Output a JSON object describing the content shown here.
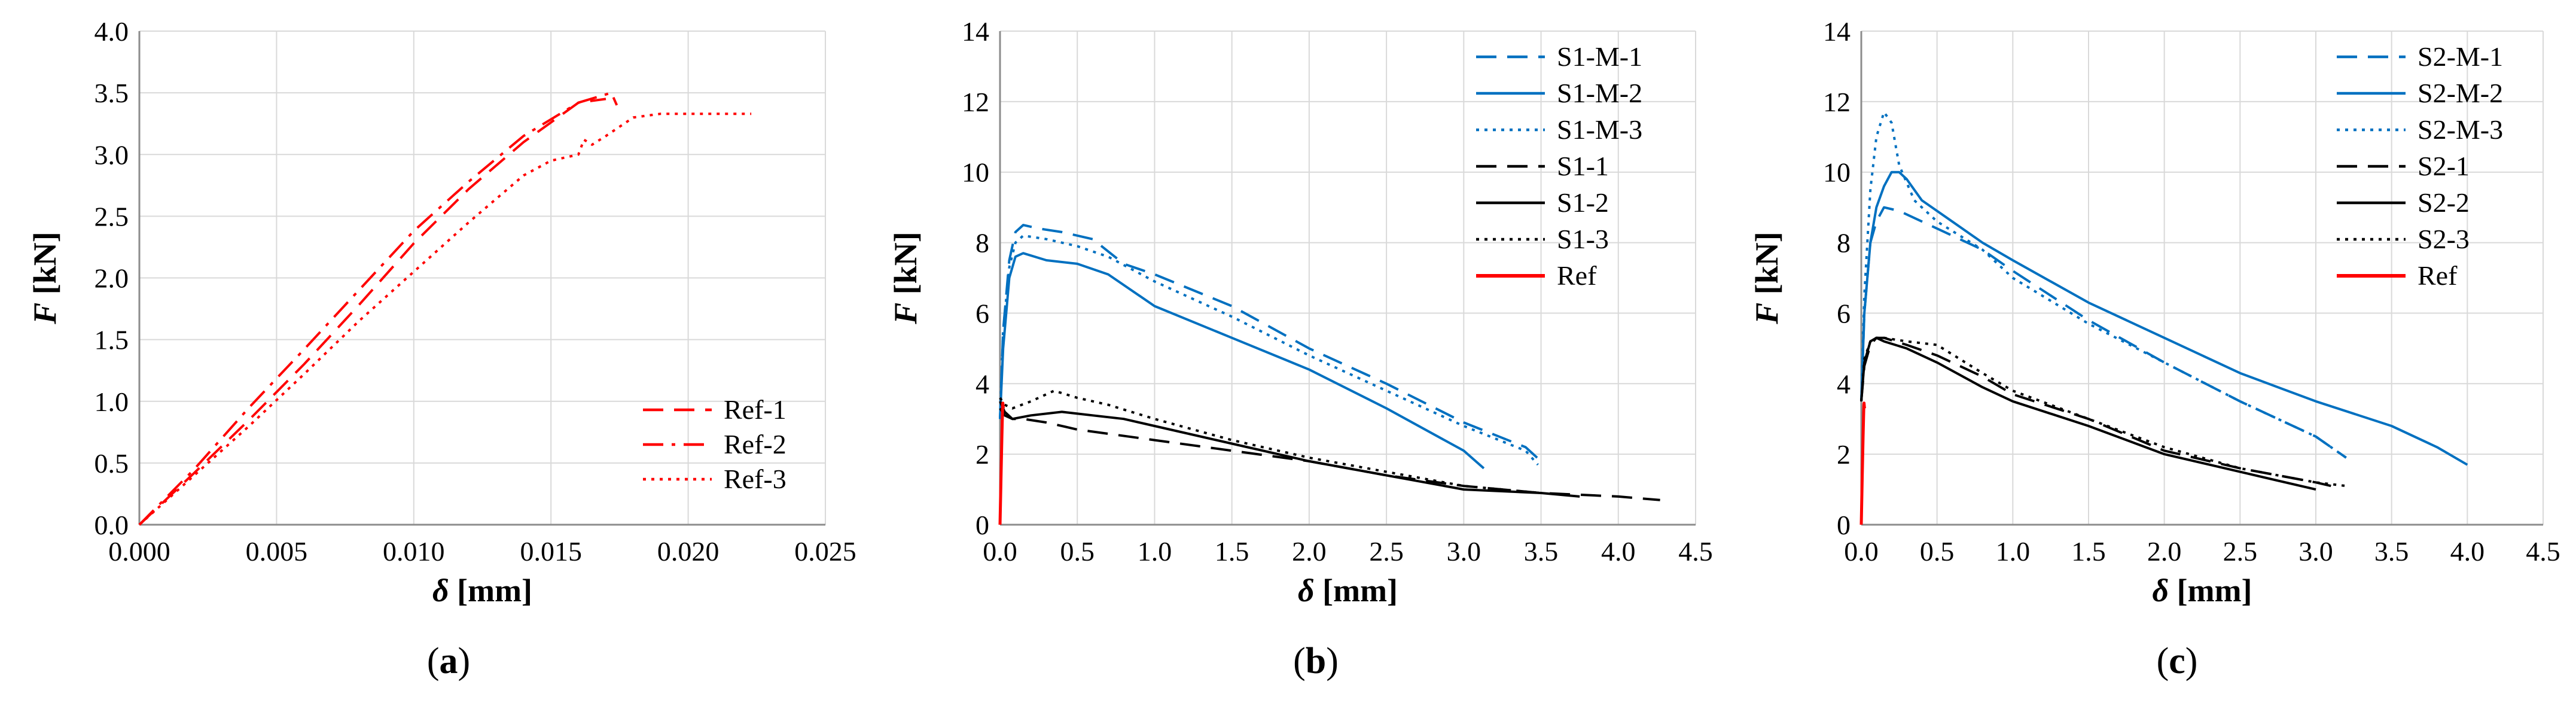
{
  "chart_data": [
    {
      "type": "line",
      "panel_label": "a",
      "caption": {
        "open": "(",
        "letter": "a",
        "close": ")"
      },
      "xlabel": {
        "symbol": "δ",
        "unit": " [mm]"
      },
      "ylabel": {
        "symbol": "F",
        "unit": " [kN]"
      },
      "xlim": [
        0,
        0.025
      ],
      "ylim": [
        0,
        4
      ],
      "xticks": [
        "0.000",
        "0.005",
        "0.010",
        "0.015",
        "0.020",
        "0.025"
      ],
      "yticks": [
        "0.0",
        "0.5",
        "1.0",
        "1.5",
        "2.0",
        "2.5",
        "3.0",
        "3.5",
        "4.0"
      ],
      "grid": true,
      "legend_position": "bottom-right",
      "series": [
        {
          "name": "Ref-1",
          "color": "#ff0000",
          "dash": "long-dash",
          "x": [
            0,
            0.002,
            0.004,
            0.006,
            0.008,
            0.01,
            0.012,
            0.014,
            0.016,
            0.017
          ],
          "y": [
            0,
            0.42,
            0.85,
            1.3,
            1.78,
            2.28,
            2.72,
            3.1,
            3.42,
            3.45
          ]
        },
        {
          "name": "Ref-2",
          "color": "#ff0000",
          "dash": "dash-dot",
          "x": [
            0,
            0.002,
            0.004,
            0.006,
            0.008,
            0.01,
            0.012,
            0.014,
            0.016,
            0.0172,
            0.0174
          ],
          "y": [
            0,
            0.45,
            0.95,
            1.42,
            1.9,
            2.38,
            2.78,
            3.15,
            3.42,
            3.5,
            3.4
          ]
        },
        {
          "name": "Ref-3",
          "color": "#ff0000",
          "dash": "dotted",
          "x": [
            0,
            0.002,
            0.004,
            0.006,
            0.008,
            0.01,
            0.012,
            0.014,
            0.015,
            0.016,
            0.0162,
            0.0165,
            0.017,
            0.018,
            0.019,
            0.02,
            0.021,
            0.0223
          ],
          "y": [
            0,
            0.4,
            0.8,
            1.22,
            1.65,
            2.05,
            2.45,
            2.83,
            2.95,
            3.0,
            3.12,
            3.08,
            3.15,
            3.3,
            3.33,
            3.33,
            3.33,
            3.33
          ]
        }
      ]
    },
    {
      "type": "line",
      "panel_label": "b",
      "caption": {
        "open": "(",
        "letter": "b",
        "close": ")"
      },
      "xlabel": {
        "symbol": "δ",
        "unit": " [mm]"
      },
      "ylabel": {
        "symbol": "F",
        "unit": " [kN]"
      },
      "xlim": [
        0,
        4.5
      ],
      "ylim": [
        0,
        14
      ],
      "xticks": [
        "0.0",
        "0.5",
        "1.0",
        "1.5",
        "2.0",
        "2.5",
        "3.0",
        "3.5",
        "4.0",
        "4.5"
      ],
      "yticks": [
        "0",
        "2",
        "4",
        "6",
        "8",
        "10",
        "12",
        "14"
      ],
      "grid": true,
      "legend_position": "top-right",
      "series": [
        {
          "name": "S1-M-1",
          "color": "#0070c0",
          "dash": "long-dash",
          "x": [
            0,
            0.02,
            0.06,
            0.1,
            0.15,
            0.25,
            0.4,
            0.6,
            0.8,
            1.0,
            1.5,
            2.0,
            2.5,
            3.0,
            3.4,
            3.5
          ],
          "y": [
            3.0,
            5.5,
            7.5,
            8.3,
            8.5,
            8.4,
            8.3,
            8.1,
            7.4,
            7.1,
            6.2,
            5.0,
            4.0,
            2.9,
            2.2,
            1.8
          ]
        },
        {
          "name": "S1-M-2",
          "color": "#0070c0",
          "dash": "solid",
          "x": [
            0,
            0.02,
            0.06,
            0.1,
            0.15,
            0.3,
            0.5,
            0.7,
            1.0,
            1.5,
            2.0,
            2.5,
            3.0,
            3.13
          ],
          "y": [
            3.0,
            5.0,
            7.0,
            7.6,
            7.7,
            7.5,
            7.4,
            7.1,
            6.2,
            5.3,
            4.4,
            3.3,
            2.1,
            1.6
          ]
        },
        {
          "name": "S1-M-3",
          "color": "#0070c0",
          "dash": "dotted",
          "x": [
            0,
            0.02,
            0.06,
            0.1,
            0.15,
            0.3,
            0.5,
            0.7,
            1.0,
            1.5,
            2.0,
            2.5,
            3.0,
            3.4,
            3.48
          ],
          "y": [
            3.0,
            5.5,
            7.3,
            8.0,
            8.2,
            8.1,
            7.9,
            7.6,
            6.9,
            5.9,
            4.8,
            3.8,
            2.8,
            2.1,
            1.7
          ]
        },
        {
          "name": "S1-1",
          "color": "#000000",
          "dash": "long-dash",
          "x": [
            0,
            0.03,
            0.08,
            0.15,
            0.3,
            0.5,
            1.0,
            1.5,
            2.0,
            2.5,
            3.0,
            3.5,
            4.0,
            4.27
          ],
          "y": [
            3.3,
            3.1,
            3.0,
            3.0,
            2.9,
            2.7,
            2.4,
            2.1,
            1.8,
            1.4,
            1.1,
            0.9,
            0.8,
            0.7
          ]
        },
        {
          "name": "S1-2",
          "color": "#000000",
          "dash": "solid",
          "x": [
            0,
            0.03,
            0.08,
            0.2,
            0.4,
            0.6,
            0.8,
            1.0,
            1.5,
            2.0,
            2.5,
            3.0,
            3.5,
            3.75
          ],
          "y": [
            3.5,
            3.2,
            3.0,
            3.1,
            3.2,
            3.1,
            3.0,
            2.8,
            2.3,
            1.8,
            1.4,
            1.0,
            0.9,
            0.8
          ]
        },
        {
          "name": "S1-3",
          "color": "#000000",
          "dash": "dotted",
          "x": [
            0,
            0.03,
            0.08,
            0.2,
            0.35,
            0.5,
            0.7,
            1.0,
            1.5,
            2.0,
            2.5,
            3.0,
            3.5
          ],
          "y": [
            3.6,
            3.4,
            3.3,
            3.5,
            3.8,
            3.6,
            3.4,
            3.0,
            2.4,
            1.9,
            1.5,
            1.1,
            0.9
          ]
        },
        {
          "name": "Ref",
          "color": "#ff0000",
          "dash": "solid",
          "x": [
            0,
            0.006,
            0.012,
            0.017,
            0.018,
            0.02,
            0.022
          ],
          "y": [
            0,
            1.3,
            2.5,
            3.4,
            3.45,
            3.35,
            3.3
          ]
        }
      ]
    },
    {
      "type": "line",
      "panel_label": "c",
      "caption": {
        "open": "(",
        "letter": "c",
        "close": ")"
      },
      "xlabel": {
        "symbol": "δ",
        "unit": " [mm]"
      },
      "ylabel": {
        "symbol": "F",
        "unit": " [kN]"
      },
      "xlim": [
        0,
        4.5
      ],
      "ylim": [
        0,
        14
      ],
      "xticks": [
        "0.0",
        "0.5",
        "1.0",
        "1.5",
        "2.0",
        "2.5",
        "3.0",
        "3.5",
        "4.0",
        "4.5"
      ],
      "yticks": [
        "0",
        "2",
        "4",
        "6",
        "8",
        "10",
        "12",
        "14"
      ],
      "grid": true,
      "legend_position": "top-right",
      "series": [
        {
          "name": "S2-M-1",
          "color": "#0070c0",
          "dash": "long-dash",
          "x": [
            0,
            0.02,
            0.06,
            0.1,
            0.15,
            0.25,
            0.4,
            0.6,
            0.8,
            1.0,
            1.5,
            2.0,
            2.5,
            3.0,
            3.2
          ],
          "y": [
            3.5,
            6.0,
            8.0,
            8.6,
            9.0,
            8.9,
            8.6,
            8.2,
            7.8,
            7.2,
            5.8,
            4.6,
            3.5,
            2.5,
            1.9
          ]
        },
        {
          "name": "S2-M-2",
          "color": "#0070c0",
          "dash": "solid",
          "x": [
            0,
            0.02,
            0.06,
            0.1,
            0.15,
            0.2,
            0.25,
            0.3,
            0.4,
            0.6,
            0.8,
            1.0,
            1.5,
            2.0,
            2.5,
            3.0,
            3.5,
            3.8,
            4.0
          ],
          "y": [
            3.5,
            6.0,
            8.0,
            9.0,
            9.6,
            10.0,
            10.0,
            9.8,
            9.2,
            8.6,
            8.0,
            7.5,
            6.3,
            5.3,
            4.3,
            3.5,
            2.8,
            2.2,
            1.7
          ]
        },
        {
          "name": "S2-M-3",
          "color": "#0070c0",
          "dash": "dotted",
          "x": [
            0,
            0.02,
            0.06,
            0.1,
            0.15,
            0.2,
            0.25,
            0.35,
            0.5,
            0.8,
            1.0,
            1.5,
            2.0,
            2.5,
            3.0,
            3.2
          ],
          "y": [
            3.5,
            6.5,
            9.5,
            11.0,
            11.7,
            11.4,
            10.2,
            9.2,
            8.6,
            7.8,
            7.0,
            5.7,
            4.6,
            3.5,
            2.5,
            1.9
          ]
        },
        {
          "name": "S2-1",
          "color": "#000000",
          "dash": "long-dash",
          "x": [
            0,
            0.02,
            0.06,
            0.1,
            0.15,
            0.3,
            0.5,
            0.8,
            1.0,
            1.5,
            2.0,
            2.5,
            3.0,
            3.1
          ],
          "y": [
            3.5,
            4.5,
            5.1,
            5.3,
            5.3,
            5.1,
            4.8,
            4.2,
            3.7,
            3.0,
            2.1,
            1.6,
            1.2,
            1.1
          ]
        },
        {
          "name": "S2-2",
          "color": "#000000",
          "dash": "solid",
          "x": [
            0,
            0.02,
            0.06,
            0.1,
            0.15,
            0.3,
            0.5,
            0.8,
            1.0,
            1.5,
            2.0,
            2.5,
            3.0
          ],
          "y": [
            3.5,
            4.6,
            5.2,
            5.3,
            5.2,
            5.0,
            4.6,
            3.9,
            3.5,
            2.8,
            2.0,
            1.5,
            1.0
          ]
        },
        {
          "name": "S2-3",
          "color": "#000000",
          "dash": "dotted",
          "x": [
            0,
            0.02,
            0.06,
            0.1,
            0.15,
            0.3,
            0.5,
            0.8,
            1.0,
            1.5,
            2.0,
            2.5,
            3.0,
            3.2
          ],
          "y": [
            3.5,
            4.7,
            5.2,
            5.3,
            5.3,
            5.2,
            5.1,
            4.3,
            3.8,
            3.0,
            2.2,
            1.6,
            1.2,
            1.1
          ]
        },
        {
          "name": "Ref",
          "color": "#ff0000",
          "dash": "solid",
          "x": [
            0,
            0.006,
            0.012,
            0.017,
            0.018,
            0.02,
            0.022
          ],
          "y": [
            0,
            1.3,
            2.5,
            3.4,
            3.45,
            3.35,
            3.3
          ]
        }
      ]
    }
  ]
}
